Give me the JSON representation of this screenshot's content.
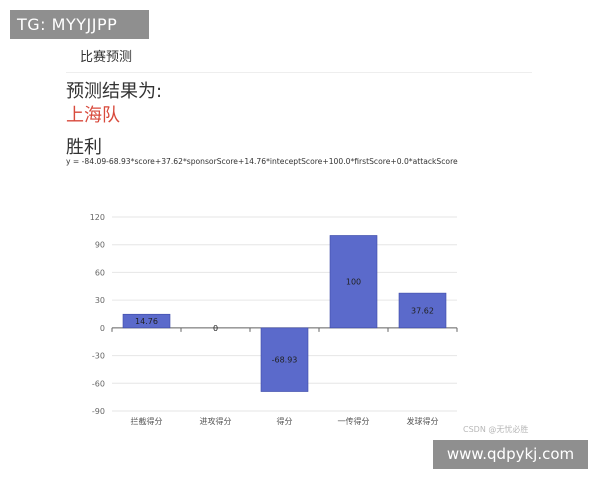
{
  "badges": {
    "tg": "TG: MYYJJPP",
    "url": "www.qdpykj.com",
    "csdn": "CSDN @无忧必胜"
  },
  "header": {
    "title": "比赛预测"
  },
  "result": {
    "label": "预测结果为:",
    "team": "上海队",
    "outcome": "胜利",
    "formula": "y = -84.09-68.93*score+37.62*sponsorScore+14.76*inteceptScore+100.0*firstScore+0.0*attackScore"
  },
  "colors": {
    "bar": "#5b6acb",
    "team": "#d84a3c"
  },
  "chart_data": {
    "type": "bar",
    "categories": [
      "拦截得分",
      "进攻得分",
      "得分",
      "一传得分",
      "发球得分"
    ],
    "values": [
      14.76,
      0,
      -68.93,
      100,
      37.62
    ],
    "data_labels": [
      "14.76",
      "0",
      "-68.93",
      "100",
      "37.62"
    ],
    "ylim": [
      -90,
      120
    ],
    "yticks": [
      120,
      90,
      60,
      30,
      0,
      -30,
      -60,
      -90
    ],
    "grid": true,
    "title": "",
    "xlabel": "",
    "ylabel": ""
  }
}
